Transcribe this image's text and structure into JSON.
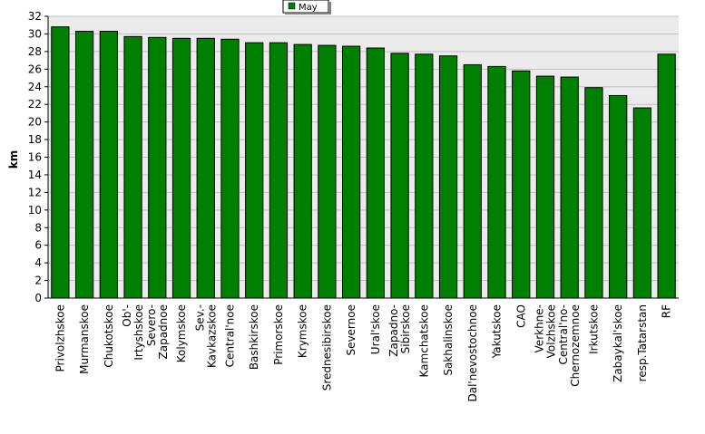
{
  "chart_data": {
    "type": "bar",
    "title": "",
    "xlabel": "",
    "ylabel": "km",
    "ylim": [
      0,
      32
    ],
    "yticks": [
      0,
      2,
      4,
      6,
      8,
      10,
      12,
      14,
      16,
      18,
      20,
      22,
      24,
      26,
      28,
      30,
      32
    ],
    "grid": true,
    "legend_position": "top-center",
    "series": [
      {
        "name": "May",
        "color": "#008000",
        "values": [
          30.8,
          30.3,
          30.3,
          29.7,
          29.6,
          29.5,
          29.5,
          29.4,
          29.0,
          29.0,
          28.8,
          28.7,
          28.6,
          28.4,
          27.8,
          27.7,
          27.5,
          26.5,
          26.3,
          25.8,
          25.2,
          25.1,
          23.9,
          23.0,
          21.6,
          27.7
        ]
      }
    ],
    "categories": [
      "Privolzhskoe",
      "Murmanskoe",
      "Chukotskoe",
      "Ob'-Irtyshskoe",
      "Severo-Zapadnoe",
      "Kolymskoe",
      "Sev.-Kavkazskoe",
      "Central'noe",
      "Bashkirskoe",
      "Primorskoe",
      "Krymskoe",
      "Srednesibirskoe",
      "Severnoe",
      "Ural'skoe",
      "Zapadno-Sibirskoe",
      "Kamchatskoe",
      "Sakhalinskoe",
      "Dal'nevostochnoe",
      "Yakutskoe",
      "CAO",
      "Verkhne-Volzhskoe",
      "Central'no-Chernozemnoe",
      "Irkutskoe",
      "Zabaykal'skoe",
      "resp.Tatarstan",
      "RF"
    ],
    "category_label_lines": [
      [
        "Privolzhskoe"
      ],
      [
        "Murmanskoe"
      ],
      [
        "Chukotskoe"
      ],
      [
        "Ob'-",
        "Irtyshskoe"
      ],
      [
        "Severo-",
        "Zapadnoe"
      ],
      [
        "Kolymskoe"
      ],
      [
        "Sev.-",
        "Kavkazskoe"
      ],
      [
        "Central'noe"
      ],
      [
        "Bashkirskoe"
      ],
      [
        "Primorskoe"
      ],
      [
        "Krymskoe"
      ],
      [
        "Srednesibirskoe"
      ],
      [
        "Severnoe"
      ],
      [
        "Ural'skoe"
      ],
      [
        "Zapadno-",
        "Sibirskoe"
      ],
      [
        "Kamchatskoe"
      ],
      [
        "Sakhalinskoe"
      ],
      [
        "Dal'nevostochnoe"
      ],
      [
        "Yakutskoe"
      ],
      [
        "CAO"
      ],
      [
        "Verkhne-",
        "Volzhskoe"
      ],
      [
        "Central'no-",
        "Chernozemnoe"
      ],
      [
        "Irkutskoe"
      ],
      [
        "Zabaykal'skoe"
      ],
      [
        "resp.Tatarstan"
      ],
      [
        "RF"
      ]
    ]
  },
  "colors": {
    "plot_background": "#ebebeb",
    "grid_line": "#c0c0c0",
    "bar_fill": "#008000",
    "bar_stroke": "#000000",
    "axis": "#000000"
  }
}
